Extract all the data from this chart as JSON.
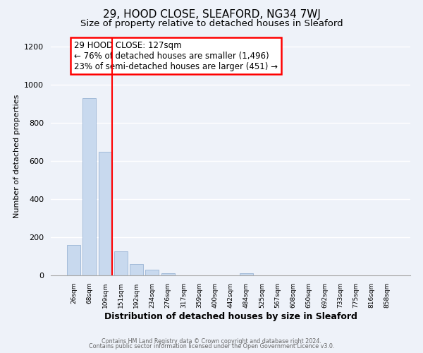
{
  "title": "29, HOOD CLOSE, SLEAFORD, NG34 7WJ",
  "subtitle": "Size of property relative to detached houses in Sleaford",
  "xlabel": "Distribution of detached houses by size in Sleaford",
  "ylabel": "Number of detached properties",
  "footer_line1": "Contains HM Land Registry data © Crown copyright and database right 2024.",
  "footer_line2": "Contains public sector information licensed under the Open Government Licence v3.0.",
  "bin_labels": [
    "26sqm",
    "68sqm",
    "109sqm",
    "151sqm",
    "192sqm",
    "234sqm",
    "276sqm",
    "317sqm",
    "359sqm",
    "400sqm",
    "442sqm",
    "484sqm",
    "525sqm",
    "567sqm",
    "608sqm",
    "650sqm",
    "692sqm",
    "733sqm",
    "775sqm",
    "816sqm",
    "858sqm"
  ],
  "bar_values": [
    160,
    930,
    650,
    125,
    60,
    28,
    10,
    0,
    0,
    0,
    0,
    12,
    0,
    0,
    0,
    0,
    0,
    0,
    0,
    0,
    0
  ],
  "bar_color": "#c8d9ee",
  "bar_edge_color": "#9ab4d4",
  "annotation_title": "29 HOOD CLOSE: 127sqm",
  "annotation_line1": "← 76% of detached houses are smaller (1,496)",
  "annotation_line2": "23% of semi-detached houses are larger (451) →",
  "red_line_x": 2.43,
  "ylim": [
    0,
    1250
  ],
  "background_color": "#eef2f9",
  "grid_color": "#ffffff",
  "title_fontsize": 11,
  "subtitle_fontsize": 9.5,
  "ylabel_fontsize": 8,
  "xlabel_fontsize": 9
}
